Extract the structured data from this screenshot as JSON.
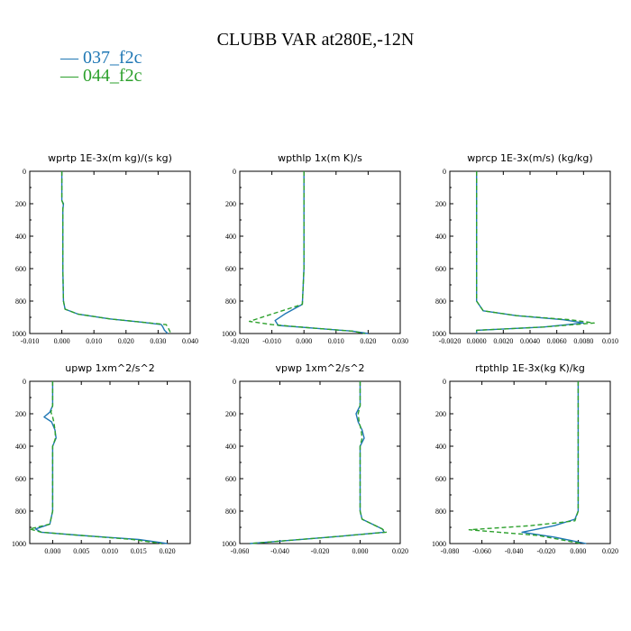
{
  "figure": {
    "title": "CLUBB VAR at280E,-12N",
    "legend": [
      {
        "label": "— 037_f2c",
        "color": "#1f77b4"
      },
      {
        "label": "— 044_f2c",
        "color": "#2ca02c"
      }
    ]
  },
  "chart_data": [
    {
      "type": "line",
      "title": "wprtp   1E-3x(m kg)/(s kg)",
      "xlim": [
        -0.01,
        0.04
      ],
      "ylim": [
        1000,
        0
      ],
      "xticks": [
        "-0.010",
        "0.000",
        "0.010",
        "0.020",
        "0.030",
        "0.040"
      ],
      "yticks": [
        "0",
        "200",
        "400",
        "600",
        "800",
        "1000"
      ],
      "series": [
        {
          "name": "037_f2c",
          "color": "#1f77b4",
          "dash": "",
          "x": [
            0.0,
            0.0,
            0.0,
            0.0005,
            0.0003,
            0.0003,
            0.0003,
            0.0005,
            0.001,
            0.005,
            0.015,
            0.025,
            0.031,
            0.0315,
            0.032,
            0.033
          ],
          "y": [
            0,
            100,
            180,
            200,
            240,
            400,
            600,
            800,
            850,
            880,
            910,
            930,
            945,
            960,
            980,
            1000
          ]
        },
        {
          "name": "044_f2c",
          "color": "#2ca02c",
          "dash": "5,3",
          "x": [
            0.0,
            0.0,
            0.0,
            0.0004,
            0.0003,
            0.0003,
            0.0003,
            0.0005,
            0.001,
            0.005,
            0.015,
            0.025,
            0.0325,
            0.033,
            0.0335,
            0.034
          ],
          "y": [
            0,
            100,
            180,
            200,
            240,
            400,
            600,
            800,
            850,
            880,
            910,
            930,
            945,
            960,
            980,
            1000
          ]
        }
      ]
    },
    {
      "type": "line",
      "title": "wpthlp   1x(m K)/s",
      "xlim": [
        -0.02,
        0.03
      ],
      "ylim": [
        1000,
        0
      ],
      "xticks": [
        "-0.020",
        "-0.010",
        "0.000",
        "0.010",
        "0.020",
        "0.030"
      ],
      "yticks": [
        "0",
        "200",
        "400",
        "600",
        "800",
        "1000"
      ],
      "series": [
        {
          "name": "037_f2c",
          "color": "#1f77b4",
          "dash": "",
          "x": [
            0.0,
            0.0,
            0.0,
            0.0,
            -0.0005,
            -0.006,
            -0.009,
            -0.008,
            0.005,
            0.015,
            0.02
          ],
          "y": [
            0,
            200,
            400,
            600,
            820,
            880,
            920,
            950,
            970,
            985,
            1000
          ]
        },
        {
          "name": "044_f2c",
          "color": "#2ca02c",
          "dash": "5,3",
          "x": [
            0.0,
            0.0,
            0.0,
            0.0,
            -0.0005,
            -0.01,
            -0.017,
            -0.01,
            0.005,
            0.015,
            0.019
          ],
          "y": [
            0,
            200,
            400,
            600,
            820,
            880,
            925,
            945,
            970,
            985,
            1000
          ]
        }
      ]
    },
    {
      "type": "line",
      "title": "wprcp   1E-3x(m/s) (kg/kg)",
      "xlim": [
        -0.002,
        0.01
      ],
      "ylim": [
        1000,
        0
      ],
      "xticks": [
        "-0.0020",
        "0.0000",
        "0.0020",
        "0.0040",
        "0.0060",
        "0.0080",
        "0.010"
      ],
      "yticks": [
        "0",
        "200",
        "400",
        "600",
        "800",
        "1000"
      ],
      "series": [
        {
          "name": "037_f2c",
          "color": "#1f77b4",
          "dash": "",
          "x": [
            0.0,
            0.0,
            0.0,
            0.0,
            0.0,
            0.0005,
            0.003,
            0.0065,
            0.008,
            0.005,
            0.0,
            0.0
          ],
          "y": [
            0,
            200,
            400,
            600,
            800,
            860,
            890,
            915,
            935,
            960,
            980,
            1000
          ]
        },
        {
          "name": "044_f2c",
          "color": "#2ca02c",
          "dash": "5,3",
          "x": [
            0.0,
            0.0,
            0.0,
            0.0,
            0.0,
            0.0005,
            0.003,
            0.007,
            0.0088,
            0.005,
            0.0,
            0.0
          ],
          "y": [
            0,
            200,
            400,
            600,
            800,
            860,
            890,
            915,
            935,
            960,
            980,
            1000
          ]
        }
      ]
    },
    {
      "type": "line",
      "title": "upwp   1xm^2/s^2",
      "xlim": [
        -0.004,
        0.024
      ],
      "ylim": [
        1000,
        0
      ],
      "xticks": [
        "0.000",
        "0.005",
        "0.010",
        "0.015",
        "0.020"
      ],
      "yticks": [
        "0",
        "200",
        "400",
        "600",
        "800",
        "1000"
      ],
      "series": [
        {
          "name": "037_f2c",
          "color": "#1f77b4",
          "dash": "",
          "x": [
            0.0,
            0.0,
            -0.0005,
            -0.0015,
            -0.0002,
            0.0004,
            0.0006,
            0.0,
            0.0,
            0.0,
            -0.0005,
            -0.003,
            -0.002,
            0.005,
            0.015,
            0.02
          ],
          "y": [
            0,
            150,
            190,
            220,
            250,
            300,
            350,
            400,
            600,
            800,
            880,
            910,
            930,
            950,
            975,
            1000
          ]
        },
        {
          "name": "044_f2c",
          "color": "#2ca02c",
          "dash": "5,3",
          "x": [
            0.0,
            0.0,
            -0.0003,
            0.0,
            0.0002,
            0.0004,
            0.0005,
            0.0,
            0.0,
            0.0,
            -0.0005,
            -0.004,
            -0.002,
            0.005,
            0.014,
            0.019
          ],
          "y": [
            0,
            150,
            190,
            220,
            250,
            300,
            350,
            400,
            600,
            800,
            880,
            910,
            930,
            950,
            975,
            1000
          ]
        }
      ]
    },
    {
      "type": "line",
      "title": "vpwp   1xm^2/s^2",
      "xlim": [
        -0.06,
        0.02
      ],
      "ylim": [
        1000,
        0
      ],
      "xticks": [
        "-0.060",
        "-0.040",
        "-0.020",
        "0.000",
        "0.020"
      ],
      "yticks": [
        "0",
        "200",
        "400",
        "600",
        "800",
        "1000"
      ],
      "series": [
        {
          "name": "037_f2c",
          "color": "#1f77b4",
          "dash": "",
          "x": [
            0.0,
            0.0,
            -0.002,
            -0.001,
            0.001,
            0.002,
            0.0,
            0.0,
            0.0,
            0.001,
            0.006,
            0.011,
            0.012,
            -0.01,
            -0.035,
            -0.055
          ],
          "y": [
            0,
            150,
            200,
            250,
            300,
            350,
            400,
            600,
            800,
            850,
            880,
            910,
            930,
            955,
            980,
            1000
          ]
        },
        {
          "name": "044_f2c",
          "color": "#2ca02c",
          "dash": "5,3",
          "x": [
            0.0,
            0.0,
            -0.001,
            -0.0005,
            0.0005,
            0.001,
            0.0,
            0.0,
            0.0,
            0.001,
            0.006,
            0.011,
            0.013,
            -0.01,
            -0.035,
            -0.055
          ],
          "y": [
            0,
            150,
            200,
            250,
            300,
            350,
            400,
            600,
            800,
            850,
            880,
            910,
            930,
            955,
            980,
            1000
          ]
        }
      ]
    },
    {
      "type": "line",
      "title": "rtpthlp   1E-3x(kg K)/kg",
      "xlim": [
        -0.08,
        0.02
      ],
      "ylim": [
        1000,
        0
      ],
      "xticks": [
        "-0.080",
        "-0.060",
        "-0.040",
        "-0.020",
        "0.000",
        "0.020"
      ],
      "yticks": [
        "0",
        "200",
        "400",
        "600",
        "800",
        "1000"
      ],
      "series": [
        {
          "name": "037_f2c",
          "color": "#1f77b4",
          "dash": "",
          "x": [
            0.0,
            0.0,
            0.0,
            0.0,
            0.0,
            -0.002,
            -0.015,
            -0.035,
            -0.015,
            0.005
          ],
          "y": [
            0,
            200,
            400,
            600,
            800,
            850,
            890,
            930,
            960,
            1000
          ]
        },
        {
          "name": "044_f2c",
          "color": "#2ca02c",
          "dash": "5,3",
          "x": [
            0.0,
            0.0,
            0.0,
            0.0,
            0.0,
            -0.002,
            -0.03,
            -0.068,
            -0.025,
            0.002
          ],
          "y": [
            0,
            200,
            400,
            600,
            800,
            860,
            890,
            915,
            950,
            1000
          ]
        }
      ]
    }
  ]
}
